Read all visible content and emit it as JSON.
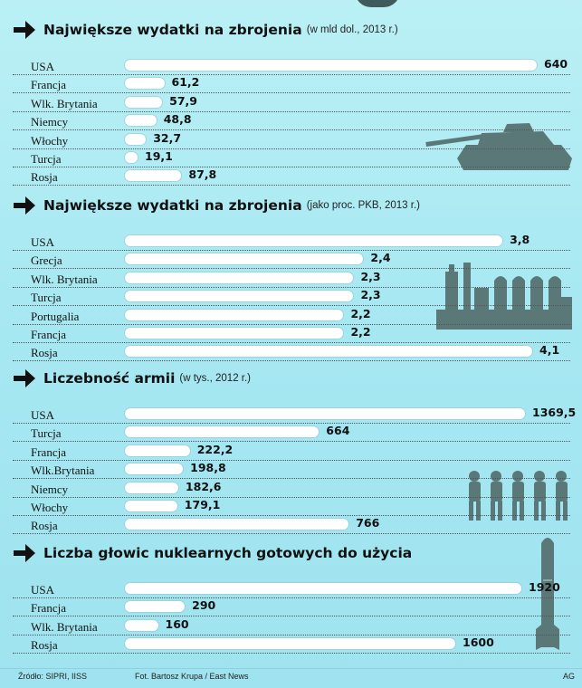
{
  "colors": {
    "bar": "#ffffff",
    "silhouette": "#5b7878",
    "arrow": "#111111",
    "background": "#a7e8f2"
  },
  "icons": [
    "arrow-right-icon",
    "tank-icon",
    "refinery-icon",
    "soldiers-icon",
    "missile-icon"
  ],
  "chart_data": [
    {
      "type": "bar",
      "title": "Największe wydatki na zbrojenia",
      "subtitle": "(w mld dol., 2013 r.)",
      "categories": [
        "USA",
        "Francja",
        "Wlk. Brytania",
        "Niemcy",
        "Włochy",
        "Turcja",
        "Rosja"
      ],
      "values": [
        640,
        61.2,
        57.9,
        48.8,
        32.7,
        19.1,
        87.8
      ],
      "labels": [
        "640",
        "61,2",
        "57,9",
        "48,8",
        "32,7",
        "19,1",
        "87,8"
      ],
      "xlim": [
        0,
        640
      ]
    },
    {
      "type": "bar",
      "title": "Największe wydatki na zbrojenia",
      "subtitle": "(jako proc. PKB, 2013 r.)",
      "categories": [
        "USA",
        "Grecja",
        "Wlk. Brytania",
        "Turcja",
        "Portugalia",
        "Francja",
        "Rosja"
      ],
      "values": [
        3.8,
        2.4,
        2.3,
        2.3,
        2.2,
        2.2,
        4.1
      ],
      "labels": [
        "3,8",
        "2,4",
        "2,3",
        "2,3",
        "2,2",
        "2,2",
        "4,1"
      ],
      "xlim": [
        0,
        4.1
      ]
    },
    {
      "type": "bar",
      "title": "Liczebność armii",
      "subtitle": "(w tys., 2012 r.)",
      "categories": [
        "USA",
        "Turcja",
        "Francja",
        "Wlk.Brytania",
        "Niemcy",
        "Włochy",
        "Rosja"
      ],
      "values": [
        1369.5,
        664,
        222.2,
        198.8,
        182.6,
        179.1,
        766
      ],
      "labels": [
        "1369,5",
        "664",
        "222,2",
        "198,8",
        "182,6",
        "179,1",
        "766"
      ],
      "xlim": [
        0,
        1369.5
      ]
    },
    {
      "type": "bar",
      "title": "Liczba głowic nuklearnych gotowych do użycia",
      "subtitle": "",
      "categories": [
        "USA",
        "Francja",
        "Wlk. Brytania",
        "Rosja"
      ],
      "values": [
        1920,
        290,
        160,
        1600
      ],
      "labels": [
        "1920",
        "290",
        "160",
        "1600"
      ],
      "xlim": [
        0,
        1920
      ]
    }
  ],
  "footer": {
    "source": "Źródło: SIPRI, IISS",
    "photo": "Fot. Bartosz Krupa / East News",
    "author": "AG"
  }
}
